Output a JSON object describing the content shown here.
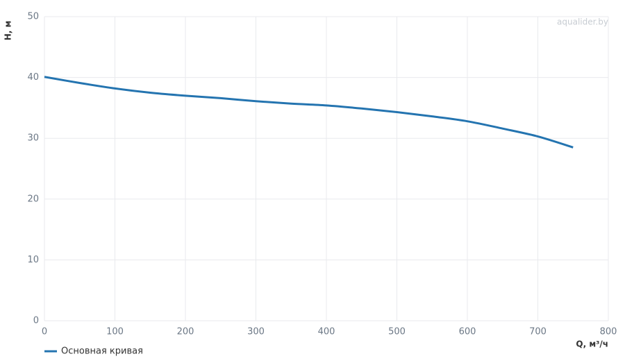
{
  "chart_data": {
    "type": "line",
    "x_label": "Q, м³/ч",
    "y_label": "H, м",
    "watermark": "aqualider.by",
    "x": [
      0,
      50,
      100,
      150,
      200,
      250,
      300,
      350,
      400,
      450,
      500,
      550,
      600,
      650,
      700,
      750
    ],
    "series": [
      {
        "name": "Основная кривая",
        "color": "#2474b0",
        "values": [
          40.1,
          39.1,
          38.2,
          37.5,
          37.0,
          36.6,
          36.1,
          35.7,
          35.4,
          34.9,
          34.3,
          33.6,
          32.8,
          31.6,
          30.3,
          28.5
        ]
      }
    ],
    "xlim": [
      0,
      800
    ],
    "xticks": [
      0,
      100,
      200,
      300,
      400,
      500,
      600,
      700,
      800
    ],
    "ylim": [
      0,
      50
    ],
    "yticks": [
      0,
      10,
      20,
      30,
      40,
      50
    ],
    "grid": true
  }
}
